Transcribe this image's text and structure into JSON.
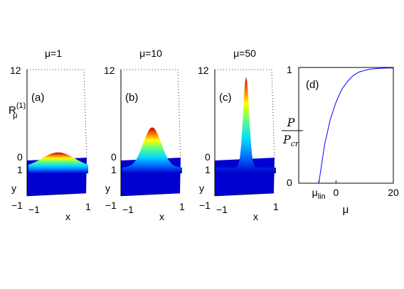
{
  "chart_data": [
    {
      "type": "surface",
      "panel": "(a)",
      "title": "μ=1",
      "ylabel_main": "R",
      "ylabel_sup": "(1)",
      "ylabel_sub": "μ",
      "zlim": [
        0,
        12
      ],
      "zticks": [
        "0",
        "12"
      ],
      "xlabel": "x",
      "ylabel": "y",
      "xticks": [
        "−1",
        "1"
      ],
      "yticks": [
        "1",
        "−1"
      ],
      "peak": 2.0,
      "width": 0.55
    },
    {
      "type": "surface",
      "panel": "(b)",
      "title": "μ=10",
      "zlim": [
        0,
        12
      ],
      "zticks": [
        "0",
        "12"
      ],
      "xlabel": "x",
      "ylabel": "y",
      "xticks": [
        "−1",
        "1"
      ],
      "yticks": [
        "1",
        "−1"
      ],
      "peak": 5.3,
      "width": 0.3
    },
    {
      "type": "surface",
      "panel": "(c)",
      "title": "μ=50",
      "zlim": [
        0,
        12
      ],
      "zticks": [
        "0",
        "12"
      ],
      "xlabel": "x",
      "ylabel": "y",
      "xticks": [
        "−1",
        "1"
      ],
      "yticks": [
        "1",
        "−1"
      ],
      "peak": 12.0,
      "width": 0.1
    },
    {
      "type": "line",
      "panel": "(d)",
      "xlabel": "μ",
      "ylabel_num": "P",
      "ylabel_den": "P",
      "ylabel_den_sub": "cr",
      "xticks": [
        {
          "value": -6,
          "main": "μ",
          "sub": "lin"
        },
        {
          "value": 0,
          "main": "0",
          "sub": ""
        },
        {
          "value": 20,
          "main": "20",
          "sub": ""
        }
      ],
      "yticks": [
        "0",
        "1"
      ],
      "xlim": [
        -13,
        20
      ],
      "ylim": [
        0,
        1
      ],
      "series": [
        {
          "color": "#0000ff",
          "x": [
            -6,
            -4,
            -2,
            0,
            2,
            4,
            6,
            8,
            10,
            12,
            14,
            16,
            18,
            20
          ],
          "y": [
            0.0,
            0.33,
            0.55,
            0.7,
            0.81,
            0.88,
            0.93,
            0.96,
            0.975,
            0.985,
            0.99,
            0.993,
            0.995,
            0.996
          ]
        }
      ]
    }
  ]
}
